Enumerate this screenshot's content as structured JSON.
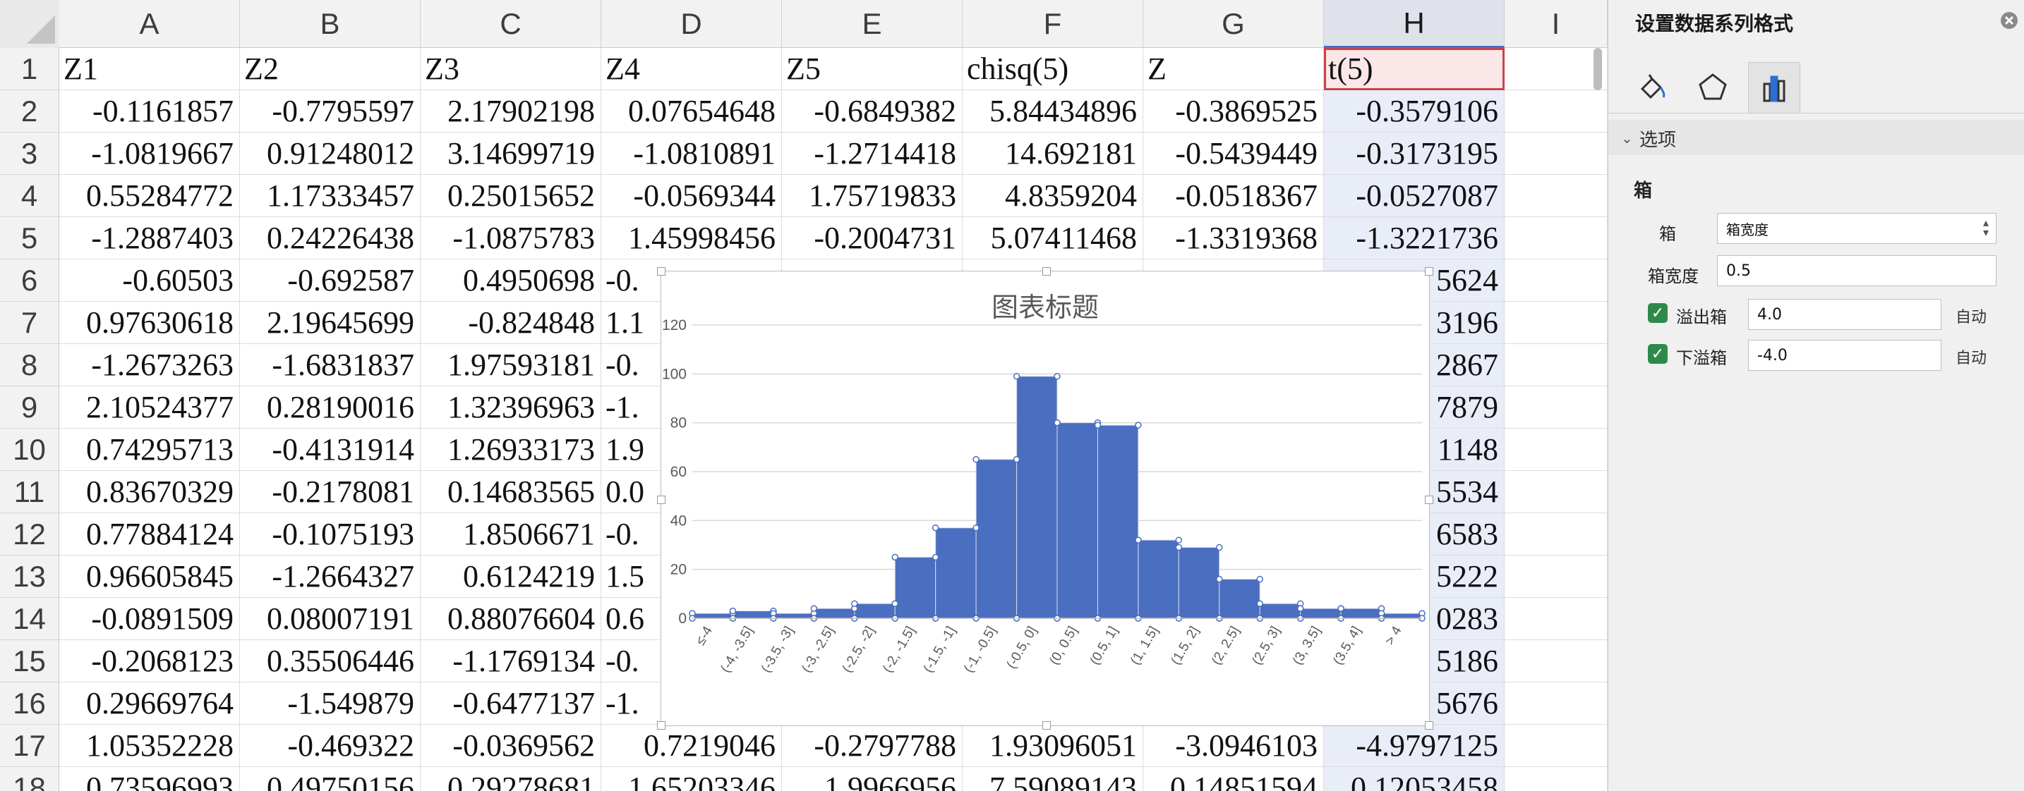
{
  "columns": [
    "A",
    "B",
    "C",
    "D",
    "E",
    "F",
    "G",
    "H",
    "I"
  ],
  "rows": [
    "1",
    "2",
    "3",
    "4",
    "5",
    "6",
    "7",
    "8",
    "9",
    "10",
    "11",
    "12",
    "13",
    "14",
    "15",
    "16",
    "17",
    "18"
  ],
  "header_row": [
    "Z1",
    "Z2",
    "Z3",
    "Z4",
    "Z5",
    "chisq(5)",
    "Z",
    "t(5)"
  ],
  "data_rows": [
    [
      "-0.1161857",
      "-0.7795597",
      "2.17902198",
      "0.07654648",
      "-0.6849382",
      "5.84434896",
      "-0.3869525",
      "-0.3579106"
    ],
    [
      "-1.0819667",
      "0.91248012",
      "3.14699719",
      "-1.0810891",
      "-1.2714418",
      "14.692181",
      "-0.5439449",
      "-0.3173195"
    ],
    [
      "0.55284772",
      "1.17333457",
      "0.25015652",
      "-0.0569344",
      "1.75719833",
      "4.8359204",
      "-0.0518367",
      "-0.0527087"
    ],
    [
      "-1.2887403",
      "0.24226438",
      "-1.0875783",
      "1.45998456",
      "-0.2004731",
      "5.07411468",
      "-1.3319368",
      "-1.3221736"
    ],
    [
      "-0.60503",
      "-0.692587",
      "0.4950698",
      "-0.",
      "",
      "",
      "",
      "5624"
    ],
    [
      "0.97630618",
      "2.19645699",
      "-0.824848",
      "1.1",
      "",
      "",
      "",
      "3196"
    ],
    [
      "-1.2673263",
      "-1.6831837",
      "1.97593181",
      "-0.",
      "",
      "",
      "",
      "2867"
    ],
    [
      "2.10524377",
      "0.28190016",
      "1.32396963",
      "-1.",
      "",
      "",
      "",
      "7879"
    ],
    [
      "0.74295713",
      "-0.4131914",
      "1.26933173",
      "1.9",
      "",
      "",
      "",
      "1148"
    ],
    [
      "0.83670329",
      "-0.2178081",
      "0.14683565",
      "0.0",
      "",
      "",
      "",
      "5534"
    ],
    [
      "0.77884124",
      "-0.1075193",
      "1.8506671",
      "-0.",
      "",
      "",
      "",
      "6583"
    ],
    [
      "0.96605845",
      "-1.2664327",
      "0.6124219",
      "1.5",
      "",
      "",
      "",
      "5222"
    ],
    [
      "-0.0891509",
      "0.08007191",
      "0.88076604",
      "0.6",
      "",
      "",
      "",
      "0283"
    ],
    [
      "-0.2068123",
      "0.35506446",
      "-1.1769134",
      "-0.",
      "",
      "",
      "",
      "5186"
    ],
    [
      "0.29669764",
      "-1.549879",
      "-0.6477137",
      "-1.",
      "",
      "",
      "",
      "5676"
    ],
    [
      "1.05352228",
      "-0.469322",
      "-0.0369562",
      "0.7219046",
      "-0.2797788",
      "1.93096051",
      "-3.0946103",
      "-4.9797125"
    ],
    [
      "0.73596993",
      "0.49750156",
      "0.29278681",
      "1.65203346",
      "1.9966956",
      "7.59089143",
      "0.14851594",
      "0.12053458"
    ]
  ],
  "chart_data": {
    "type": "bar",
    "title": "图表标题",
    "categories": [
      "≤-4",
      "(-4, -3.5]",
      "(-3.5, -3]",
      "(-3, -2.5]",
      "(-2.5, -2]",
      "(-2, -1.5]",
      "(-1.5, -1]",
      "(-1, -0.5]",
      "(-0.5, 0]",
      "(0, 0.5]",
      "(0.5, 1]",
      "(1, 1.5]",
      "(1.5, 2]",
      "(2, 2.5]",
      "(2.5, 3]",
      "(3, 3.5]",
      "(3.5, 4]",
      "> 4"
    ],
    "values": [
      2,
      3,
      2,
      4,
      6,
      25,
      37,
      65,
      99,
      80,
      79,
      32,
      29,
      16,
      6,
      4,
      4,
      2
    ],
    "ylim": [
      0,
      120
    ],
    "yticks": [
      0,
      20,
      40,
      60,
      80,
      100,
      120
    ],
    "bar_color": "#4a6ec0",
    "grid": true
  },
  "pane": {
    "title": "设置数据系列格式",
    "tab_icons": [
      "fill-bucket-icon",
      "pentagon-icon",
      "bar-chart-icon"
    ],
    "section": "选项",
    "group": "箱",
    "bin_label": "箱",
    "bin_select_value": "箱宽度",
    "bin_width_label": "箱宽度",
    "bin_width_value": "0.5",
    "overflow_label": "溢出箱",
    "overflow_value": "4.0",
    "underflow_label": "下溢箱",
    "underflow_value": "-4.0",
    "auto_label": "自动",
    "accent_color": "#2e8a4b"
  }
}
